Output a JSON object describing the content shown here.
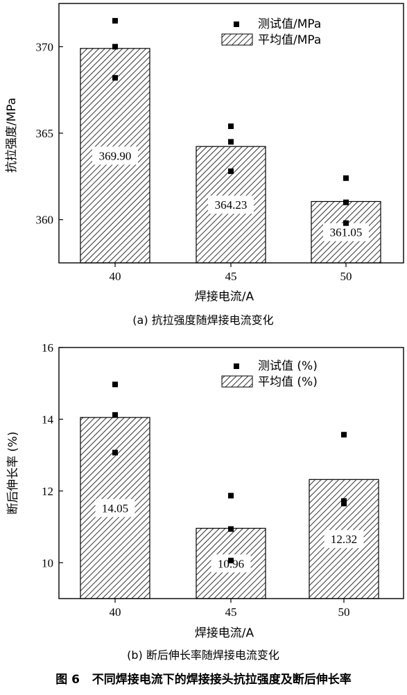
{
  "figure_caption": {
    "prefix": "图 6",
    "text": "不同焊接电流下的焊接接头抗拉强度及断后伸长率"
  },
  "colors": {
    "axis": "#000000",
    "hatch": "#000000",
    "point": "#000000",
    "background": "#ffffff"
  },
  "chart_data": [
    {
      "type": "bar",
      "caption": "(a) 抗拉强度随焊接电流变化",
      "xlabel": "焊接电流/A",
      "ylabel": "抗拉强度/MPa",
      "categories": [
        "40",
        "45",
        "50"
      ],
      "yticks": [
        "360",
        "365",
        "370"
      ],
      "ylim": [
        357.5,
        372.5
      ],
      "legend_position": "top-right",
      "series": [
        {
          "name": "平均值/MPa",
          "kind": "bar",
          "values": [
            369.9,
            364.23,
            361.05
          ],
          "labels": [
            "369.90",
            "364.23",
            "361.05"
          ]
        },
        {
          "name": "测试值/MPa",
          "kind": "scatter",
          "points": [
            [
              40,
              371.5
            ],
            [
              40,
              370.0
            ],
            [
              40,
              368.2
            ],
            [
              45,
              365.4
            ],
            [
              45,
              364.5
            ],
            [
              45,
              362.8
            ],
            [
              50,
              362.4
            ],
            [
              50,
              361.0
            ],
            [
              50,
              359.8
            ]
          ]
        }
      ]
    },
    {
      "type": "bar",
      "caption": "(b) 断后伸长率随焊接电流变化",
      "xlabel": "焊接电流/A",
      "ylabel": "断后伸长率 (%)",
      "categories": [
        "40",
        "45",
        "50"
      ],
      "yticks": [
        "10",
        "12",
        "14",
        "16"
      ],
      "ylim": [
        9.0,
        16.0
      ],
      "legend_position": "top-right",
      "series": [
        {
          "name": "平均值 (%)",
          "kind": "bar",
          "values": [
            14.05,
            10.96,
            12.32
          ],
          "labels": [
            "14.05",
            "10.96",
            "12.32"
          ]
        },
        {
          "name": "测试值 (%)",
          "kind": "scatter",
          "points": [
            [
              40,
              14.97
            ],
            [
              40,
              14.12
            ],
            [
              40,
              13.07
            ],
            [
              45,
              11.87
            ],
            [
              45,
              10.94
            ],
            [
              45,
              10.06
            ],
            [
              50,
              13.57
            ],
            [
              50,
              11.72
            ],
            [
              50,
              11.65
            ]
          ]
        }
      ]
    }
  ]
}
